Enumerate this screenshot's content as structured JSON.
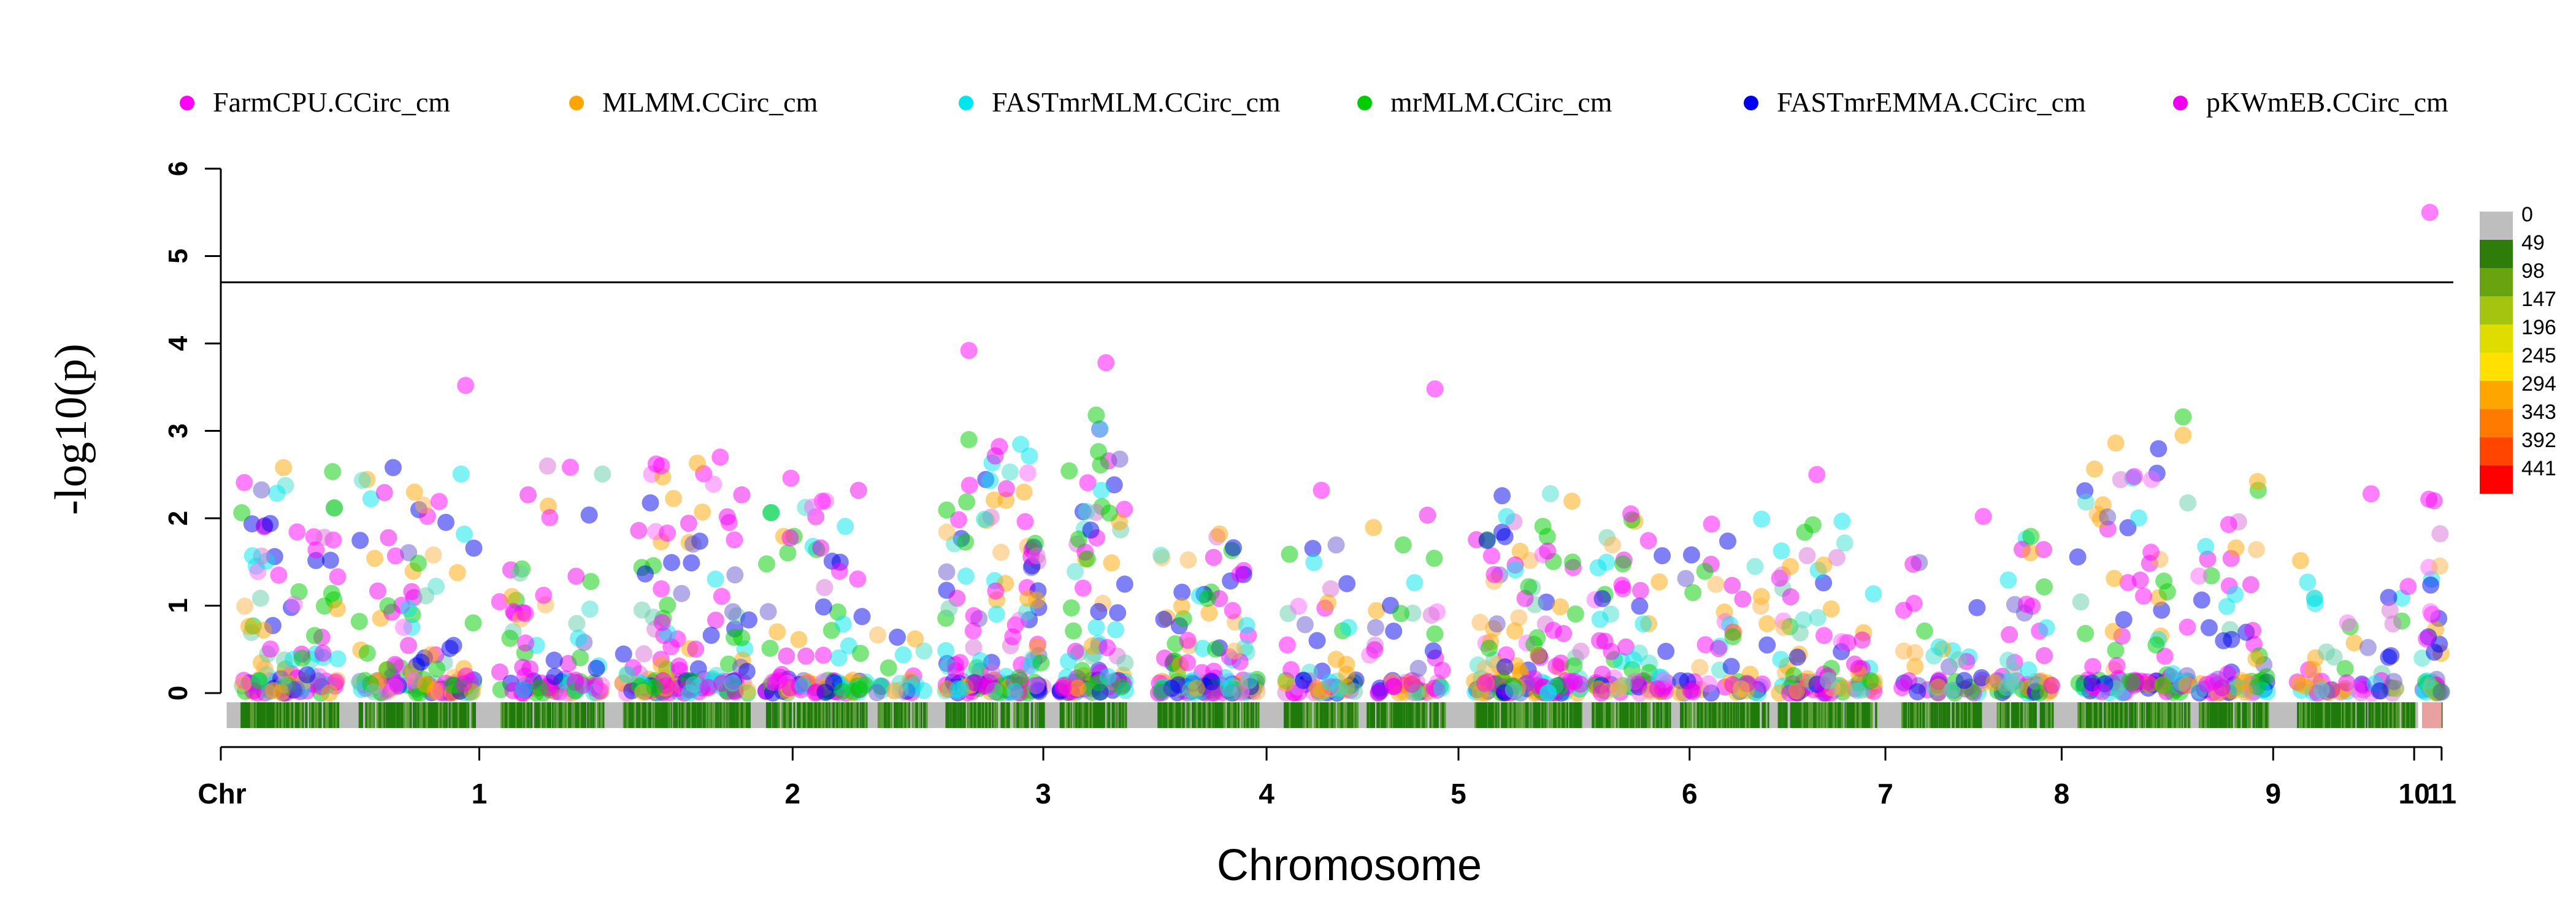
{
  "chart_data": {
    "type": "scatter",
    "subtype": "manhattan",
    "ylabel": "-log10(p)",
    "xlabel": "Chromosome",
    "xaxis_prefix": "Chr",
    "ylim": [
      0,
      6
    ],
    "yticks": [
      0,
      1,
      2,
      3,
      4,
      5,
      6
    ],
    "threshold": 4.7,
    "chromosomes": [
      "1",
      "2",
      "3",
      "4",
      "5",
      "6",
      "7",
      "8",
      "9",
      "10",
      "11"
    ],
    "chrom_bounds": [
      {
        "chr": "1",
        "start": 0.03,
        "end": 1.32,
        "label_at": 0.65
      },
      {
        "chr": "2",
        "start": 1.4,
        "end": 2.92,
        "label_at": 1.85
      },
      {
        "chr": "3",
        "start": 2.94,
        "end": 4.2,
        "label_at": 3.55
      },
      {
        "chr": "4",
        "start": 4.26,
        "end": 5.34,
        "label_at": 4.8
      },
      {
        "chr": "5",
        "start": 5.4,
        "end": 6.32,
        "label_at": 5.86
      },
      {
        "chr": "6",
        "start": 6.36,
        "end": 7.5,
        "label_at": 6.95
      },
      {
        "chr": "7",
        "start": 7.54,
        "end": 8.5,
        "label_at": 8.03
      },
      {
        "chr": "8",
        "start": 8.56,
        "end": 9.4,
        "label_at": 8.98
      },
      {
        "chr": "9",
        "start": 9.46,
        "end": 10.48,
        "label_at": 9.97
      },
      {
        "chr": "10",
        "start": 10.54,
        "end": 11.2,
        "label_at": 10.87
      },
      {
        "chr": "11",
        "start": 11.24,
        "end": 11.34,
        "label_at": 11.29
      }
    ],
    "series": [
      {
        "name": "FarmCPU.CCirc_cm",
        "color": "#FF00FF"
      },
      {
        "name": "MLMM.CCirc_cm",
        "color": "#FFA500"
      },
      {
        "name": "FASTmrMLM.CCirc_cm",
        "color": "#00E5EE"
      },
      {
        "name": "mrMLM.CCirc_cm",
        "color": "#00CD00"
      },
      {
        "name": "FASTmrEMMA.CCirc_cm",
        "color": "#0000EE"
      },
      {
        "name": "pKWmEB.CCirc_cm",
        "color": "#EE00EE"
      }
    ],
    "clusters": [
      {
        "x": [
          0.1,
          0.6
        ],
        "n": 120,
        "max": 2.6
      },
      {
        "x": [
          0.7,
          1.3
        ],
        "n": 150,
        "max": 2.6
      },
      {
        "x": [
          1.42,
          1.95
        ],
        "n": 90,
        "max": 2.6
      },
      {
        "x": [
          2.05,
          2.7
        ],
        "n": 160,
        "max": 2.7
      },
      {
        "x": [
          2.78,
          3.3
        ],
        "n": 110,
        "max": 2.5
      },
      {
        "x": [
          3.35,
          3.6
        ],
        "n": 25,
        "max": 0.8
      },
      {
        "x": [
          3.7,
          4.2
        ],
        "n": 170,
        "max": 2.9
      },
      {
        "x": [
          4.28,
          4.62
        ],
        "n": 110,
        "max": 3.2
      },
      {
        "x": [
          4.78,
          5.3
        ],
        "n": 130,
        "max": 1.8
      },
      {
        "x": [
          5.42,
          5.8
        ],
        "n": 60,
        "max": 1.8
      },
      {
        "x": [
          5.85,
          6.25
        ],
        "n": 55,
        "max": 2.3
      },
      {
        "x": [
          6.4,
          6.95
        ],
        "n": 150,
        "max": 2.3
      },
      {
        "x": [
          7.0,
          7.4
        ],
        "n": 80,
        "max": 2.0
      },
      {
        "x": [
          7.45,
          7.9
        ],
        "n": 60,
        "max": 2.0
      },
      {
        "x": [
          7.95,
          8.45
        ],
        "n": 95,
        "max": 2.0
      },
      {
        "x": [
          8.58,
          9.0
        ],
        "n": 45,
        "max": 1.5
      },
      {
        "x": [
          9.05,
          9.35
        ],
        "n": 55,
        "max": 2.0
      },
      {
        "x": [
          9.48,
          10.05
        ],
        "n": 110,
        "max": 3.1
      },
      {
        "x": [
          10.1,
          10.45
        ],
        "n": 70,
        "max": 2.4
      },
      {
        "x": [
          10.6,
          11.2
        ],
        "n": 60,
        "max": 1.8
      },
      {
        "x": [
          11.24,
          11.34
        ],
        "n": 45,
        "max": 2.8
      }
    ],
    "highlight_points": [
      {
        "x": 1.25,
        "y": 3.52,
        "series": 0
      },
      {
        "x": 3.82,
        "y": 3.92,
        "series": 0
      },
      {
        "x": 4.52,
        "y": 3.78,
        "series": 0
      },
      {
        "x": 4.47,
        "y": 3.18,
        "series": 3
      },
      {
        "x": 3.82,
        "y": 2.9,
        "series": 3
      },
      {
        "x": 6.2,
        "y": 3.48,
        "series": 0
      },
      {
        "x": 10.02,
        "y": 3.16,
        "series": 3
      },
      {
        "x": 10.02,
        "y": 2.95,
        "series": 1
      },
      {
        "x": 11.28,
        "y": 5.5,
        "series": 0
      },
      {
        "x": 0.32,
        "y": 2.58,
        "series": 1
      },
      {
        "x": 0.58,
        "y": 2.12,
        "series": 3
      },
      {
        "x": 0.88,
        "y": 2.58,
        "series": 4
      },
      {
        "x": 2.55,
        "y": 2.7,
        "series": 0
      },
      {
        "x": 2.25,
        "y": 2.6,
        "series": 0
      },
      {
        "x": 5.1,
        "y": 1.82,
        "series": 1
      },
      {
        "x": 5.62,
        "y": 2.32,
        "series": 0
      },
      {
        "x": 7.2,
        "y": 2.05,
        "series": 0
      },
      {
        "x": 8.15,
        "y": 2.5,
        "series": 0
      },
      {
        "x": 9.0,
        "y": 2.02,
        "series": 0
      },
      {
        "x": 10.4,
        "y": 2.42,
        "series": 1
      },
      {
        "x": 10.98,
        "y": 2.28,
        "series": 0
      }
    ],
    "density_legend": {
      "labels": [
        "0",
        "49",
        "98",
        "147",
        "196",
        "245",
        "294",
        "343",
        "392",
        "441"
      ],
      "colors": [
        "#BEBEBE",
        "#2E7D0B",
        "#69A310",
        "#A5C40F",
        "#E0DC00",
        "#FFE000",
        "#FFA500",
        "#FF7A00",
        "#FF4500",
        "#FF0000"
      ]
    },
    "density_track": {
      "base_color": "#BEBEBE",
      "dense_color": "#1F7A0B",
      "end_color": "#E8A0A0"
    }
  }
}
